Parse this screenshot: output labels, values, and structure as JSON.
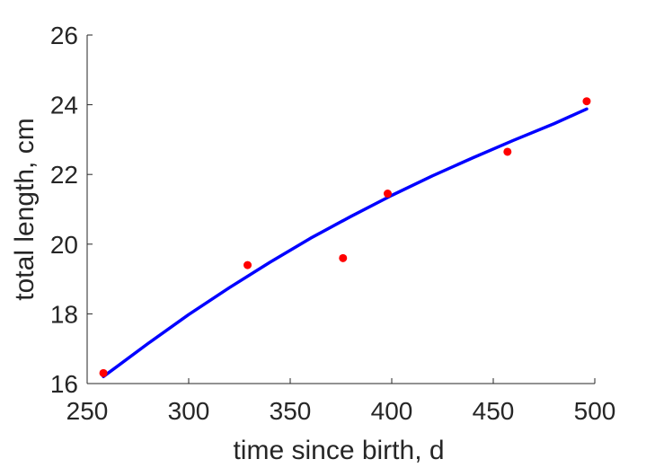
{
  "chart_data": {
    "type": "scatter",
    "xlabel": "time since birth, d",
    "ylabel": "total length, cm",
    "xlim": [
      250,
      500
    ],
    "ylim": [
      16,
      26
    ],
    "xticks": [
      250,
      300,
      350,
      400,
      450,
      500
    ],
    "yticks": [
      16,
      18,
      20,
      22,
      24,
      26
    ],
    "grid": false,
    "series": [
      {
        "kind": "points",
        "color": "#ff0000",
        "x": [
          258,
          329,
          376,
          398,
          457,
          496
        ],
        "y": [
          16.3,
          19.4,
          19.6,
          21.45,
          22.65,
          24.1
        ]
      },
      {
        "kind": "line",
        "color": "#0000ff",
        "x": [
          258,
          280,
          300,
          320,
          340,
          360,
          380,
          400,
          420,
          440,
          460,
          480,
          496
        ],
        "y": [
          16.2,
          17.15,
          17.98,
          18.75,
          19.48,
          20.17,
          20.8,
          21.4,
          21.96,
          22.48,
          22.98,
          23.46,
          23.88
        ]
      }
    ]
  }
}
